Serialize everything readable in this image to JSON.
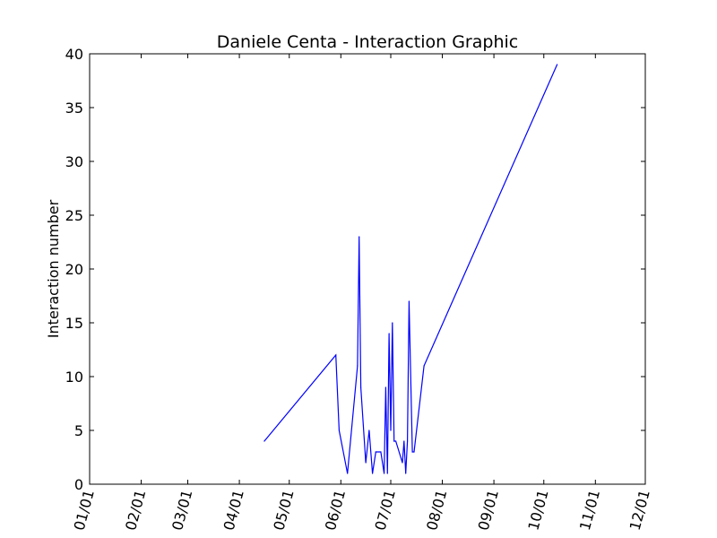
{
  "chart_data": {
    "type": "line",
    "title": "Daniele Centa - Interaction Graphic",
    "xlabel": "",
    "ylabel": "Interaction number",
    "ylim": [
      0,
      40
    ],
    "yticks": [
      "0",
      "5",
      "10",
      "15",
      "20",
      "25",
      "30",
      "35",
      "40"
    ],
    "xlim": [
      "01/01",
      "12/01"
    ],
    "xticks": [
      "01/01",
      "02/01",
      "03/01",
      "04/01",
      "05/01",
      "06/01",
      "07/01",
      "08/01",
      "09/01",
      "10/01",
      "11/01",
      "12/01"
    ],
    "grid": false,
    "legend": "none",
    "line_color": "#0000ff",
    "series": [
      {
        "x": [
          "04/16",
          "05/29",
          "05/31",
          "06/05",
          "06/11",
          "06/12",
          "06/13",
          "06/16",
          "06/18",
          "06/20",
          "06/22",
          "06/25",
          "06/27",
          "06/28",
          "06/29",
          "06/30",
          "07/01",
          "07/02",
          "07/03",
          "07/04",
          "07/08",
          "07/09",
          "07/10",
          "07/11",
          "07/12",
          "07/14",
          "07/15",
          "07/21",
          "10/09"
        ],
        "y": [
          4,
          12,
          5,
          1,
          11,
          23,
          9,
          2,
          5,
          1,
          3,
          3,
          1,
          9,
          1,
          14,
          5,
          15,
          4,
          4,
          2,
          4,
          1,
          4,
          17,
          3,
          3,
          11,
          39
        ]
      }
    ]
  }
}
